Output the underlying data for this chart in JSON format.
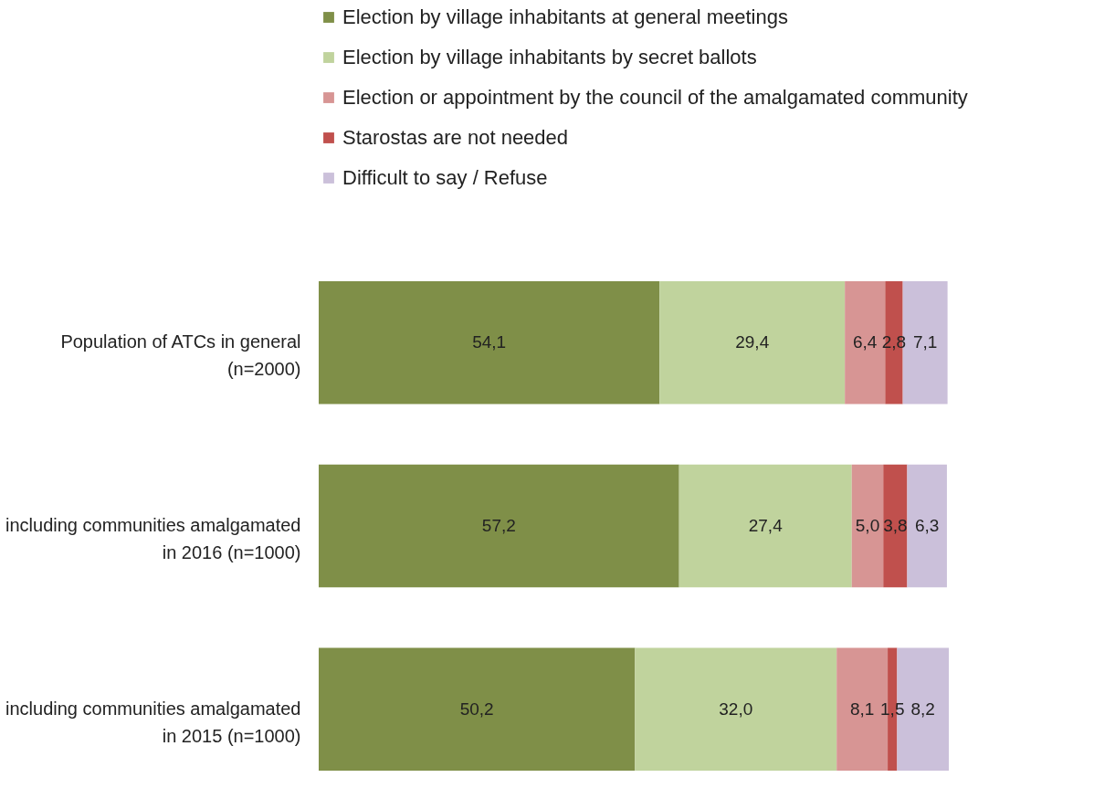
{
  "chart_data": {
    "type": "bar",
    "orientation": "horizontal",
    "stacked": true,
    "legend": "top",
    "tick_labels": "y",
    "xlim": [
      0,
      100
    ],
    "categories": [
      "Population of ATCs in general (n=2000)",
      "including communities amalgamated in 2016 (n=1000)",
      "including communities amalgamated in 2015 (n=1000)"
    ],
    "series": [
      {
        "name": "Election by village inhabitants at general meetings",
        "color": "#7f8f48",
        "values": [
          54.1,
          57.2,
          50.2
        ],
        "value_labels": [
          "54,1",
          "57,2",
          "50,2"
        ]
      },
      {
        "name": "Election by village inhabitants by secret ballots",
        "color": "#c0d39d",
        "values": [
          29.4,
          27.4,
          32.0
        ],
        "value_labels": [
          "29,4",
          "27,4",
          "32,0"
        ]
      },
      {
        "name": "Election or appointment by the council of the amalgamated community",
        "color": "#d79594",
        "values": [
          6.4,
          5.0,
          8.1
        ],
        "value_labels": [
          "6,4",
          "5,0",
          "8,1"
        ]
      },
      {
        "name": "Starostas are not needed",
        "color": "#c0504d",
        "values": [
          2.8,
          3.8,
          1.5
        ],
        "value_labels": [
          "2,8",
          "3,8",
          "1,5"
        ]
      },
      {
        "name": "Difficult to say / Refuse",
        "color": "#cbc0da",
        "values": [
          7.1,
          6.3,
          8.2
        ],
        "value_labels": [
          "7,1",
          "6,3",
          "8,2"
        ]
      }
    ]
  }
}
